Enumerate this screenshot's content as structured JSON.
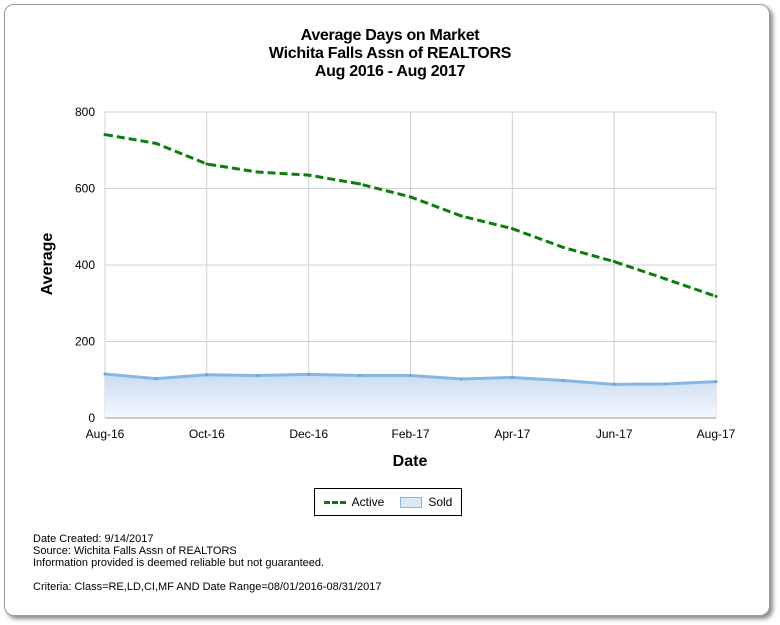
{
  "chart_data": {
    "type": "line",
    "title": [
      "Average Days on Market",
      "Wichita Falls Assn of REALTORS",
      "Aug 2016 - Aug 2017"
    ],
    "xlabel": "Date",
    "ylabel": "Average",
    "ylim": [
      0,
      800
    ],
    "yticks": [
      0,
      200,
      400,
      600,
      800
    ],
    "x": [
      "Aug-16",
      "Sep-16",
      "Oct-16",
      "Nov-16",
      "Dec-16",
      "Jan-17",
      "Feb-17",
      "Mar-17",
      "Apr-17",
      "May-17",
      "Jun-17",
      "Jul-17",
      "Aug-17"
    ],
    "xtick_labels": [
      "Aug-16",
      "Oct-16",
      "Dec-16",
      "Feb-17",
      "Apr-17",
      "Jun-17",
      "Aug-17"
    ],
    "grid": true,
    "legend_placement": "bottom-center",
    "series": [
      {
        "name": "Active",
        "style": "dashed-line",
        "color": "#0a7d0a",
        "values": [
          741,
          718,
          664,
          643,
          635,
          612,
          578,
          528,
          495,
          446,
          409,
          364,
          318
        ]
      },
      {
        "name": "Sold",
        "style": "area",
        "color": "#86b6e3",
        "fill": "#dbe9f7",
        "values": [
          115,
          103,
          113,
          111,
          114,
          111,
          111,
          102,
          106,
          98,
          88,
          89,
          95
        ]
      }
    ]
  },
  "footer": {
    "date_created": "Date Created: 9/14/2017",
    "source": "Source: Wichita Falls Assn of REALTORS",
    "disclaimer": "Information provided is deemed reliable but not guaranteed.",
    "criteria": "Criteria: Class=RE,LD,CI,MF AND Date Range=08/01/2016-08/31/2017"
  }
}
